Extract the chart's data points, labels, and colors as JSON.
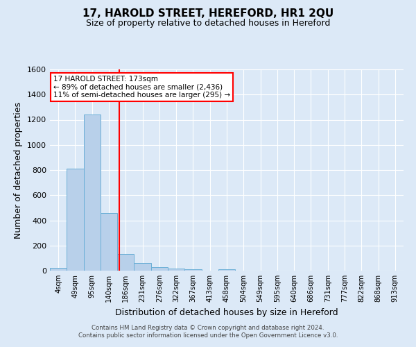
{
  "title": "17, HAROLD STREET, HEREFORD, HR1 2QU",
  "subtitle": "Size of property relative to detached houses in Hereford",
  "xlabel": "Distribution of detached houses by size in Hereford",
  "ylabel": "Number of detached properties",
  "bar_labels": [
    "4sqm",
    "49sqm",
    "95sqm",
    "140sqm",
    "186sqm",
    "231sqm",
    "276sqm",
    "322sqm",
    "367sqm",
    "413sqm",
    "458sqm",
    "504sqm",
    "549sqm",
    "595sqm",
    "640sqm",
    "686sqm",
    "731sqm",
    "777sqm",
    "822sqm",
    "868sqm",
    "913sqm"
  ],
  "bar_values": [
    20,
    810,
    1240,
    460,
    135,
    60,
    25,
    15,
    10,
    0,
    10,
    0,
    0,
    0,
    0,
    0,
    0,
    0,
    0,
    0,
    0
  ],
  "bar_color": "#b8d0ea",
  "bar_edge_color": "#6aaed6",
  "vline_color": "red",
  "vline_position": 3.6,
  "annotation_line1": "17 HAROLD STREET: 173sqm",
  "annotation_line2": "← 89% of detached houses are smaller (2,436)",
  "annotation_line3": "11% of semi-detached houses are larger (295) →",
  "annotation_box_color": "white",
  "annotation_box_edge": "red",
  "ylim": [
    0,
    1600
  ],
  "yticks": [
    0,
    200,
    400,
    600,
    800,
    1000,
    1200,
    1400,
    1600
  ],
  "bg_color": "#dce9f7",
  "plot_bg_color": "#dce9f7",
  "grid_color": "white",
  "footer_line1": "Contains HM Land Registry data © Crown copyright and database right 2024.",
  "footer_line2": "Contains public sector information licensed under the Open Government Licence v3.0."
}
